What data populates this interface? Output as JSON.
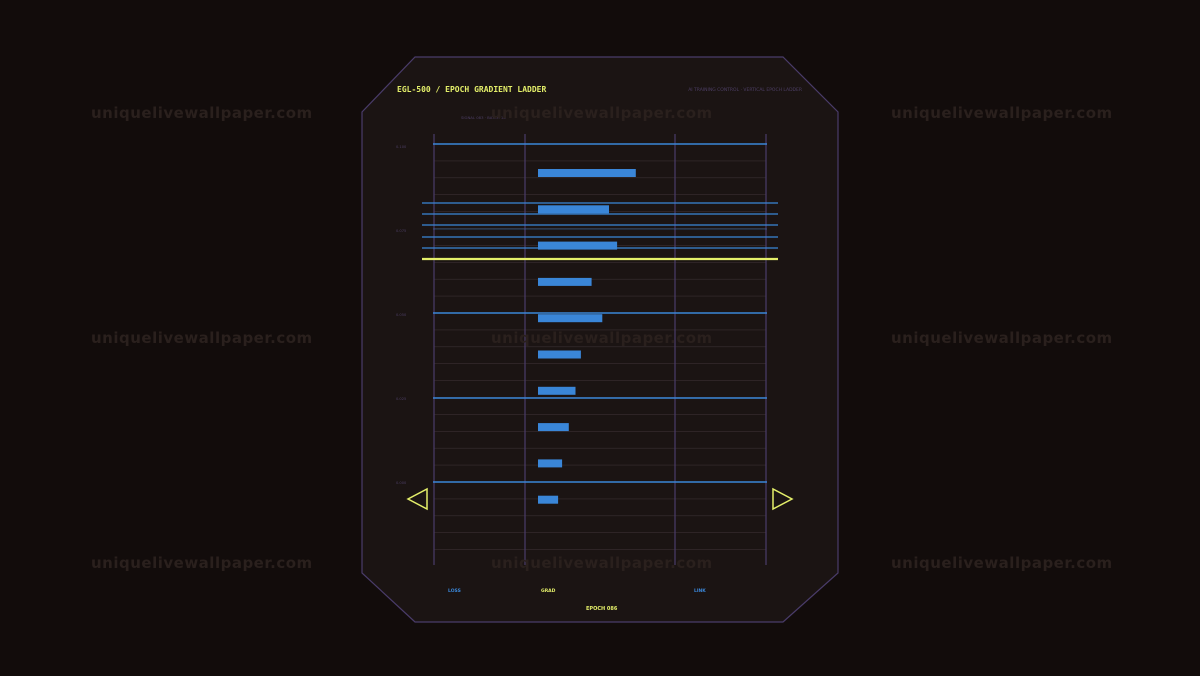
{
  "header": {
    "title": "EGL-500  /  EPOCH GRADIENT LADDER",
    "subtitle": "AI TRAINING CONTROL  ·  VERTICAL EPOCH LADDER",
    "meta": "SIGNAL 083  ·  BATCH 16"
  },
  "y_labels": [
    "0.100",
    "0.075",
    "0.050",
    "0.025",
    "0.000"
  ],
  "columns": {
    "loss": "LOSS",
    "grad": "GRAD",
    "link": "LINK"
  },
  "epoch_label": "EPOCH 086",
  "gradient_bars": [
    0.73,
    0.53,
    0.59,
    0.4,
    0.48,
    0.32,
    0.28,
    0.23,
    0.18,
    0.15
  ],
  "watermark": "uniquelivewallpaper.com",
  "colors": {
    "background": "#120c0b",
    "panel": "#1b1413",
    "panel_border": "#4a3c6a",
    "grid": "#3a2f33",
    "blue": "#3a86d8",
    "yellow": "#e4ef6a",
    "muted": "#4d3f66"
  },
  "icons": {
    "prev": "triangle-left-icon",
    "next": "triangle-right-icon"
  }
}
